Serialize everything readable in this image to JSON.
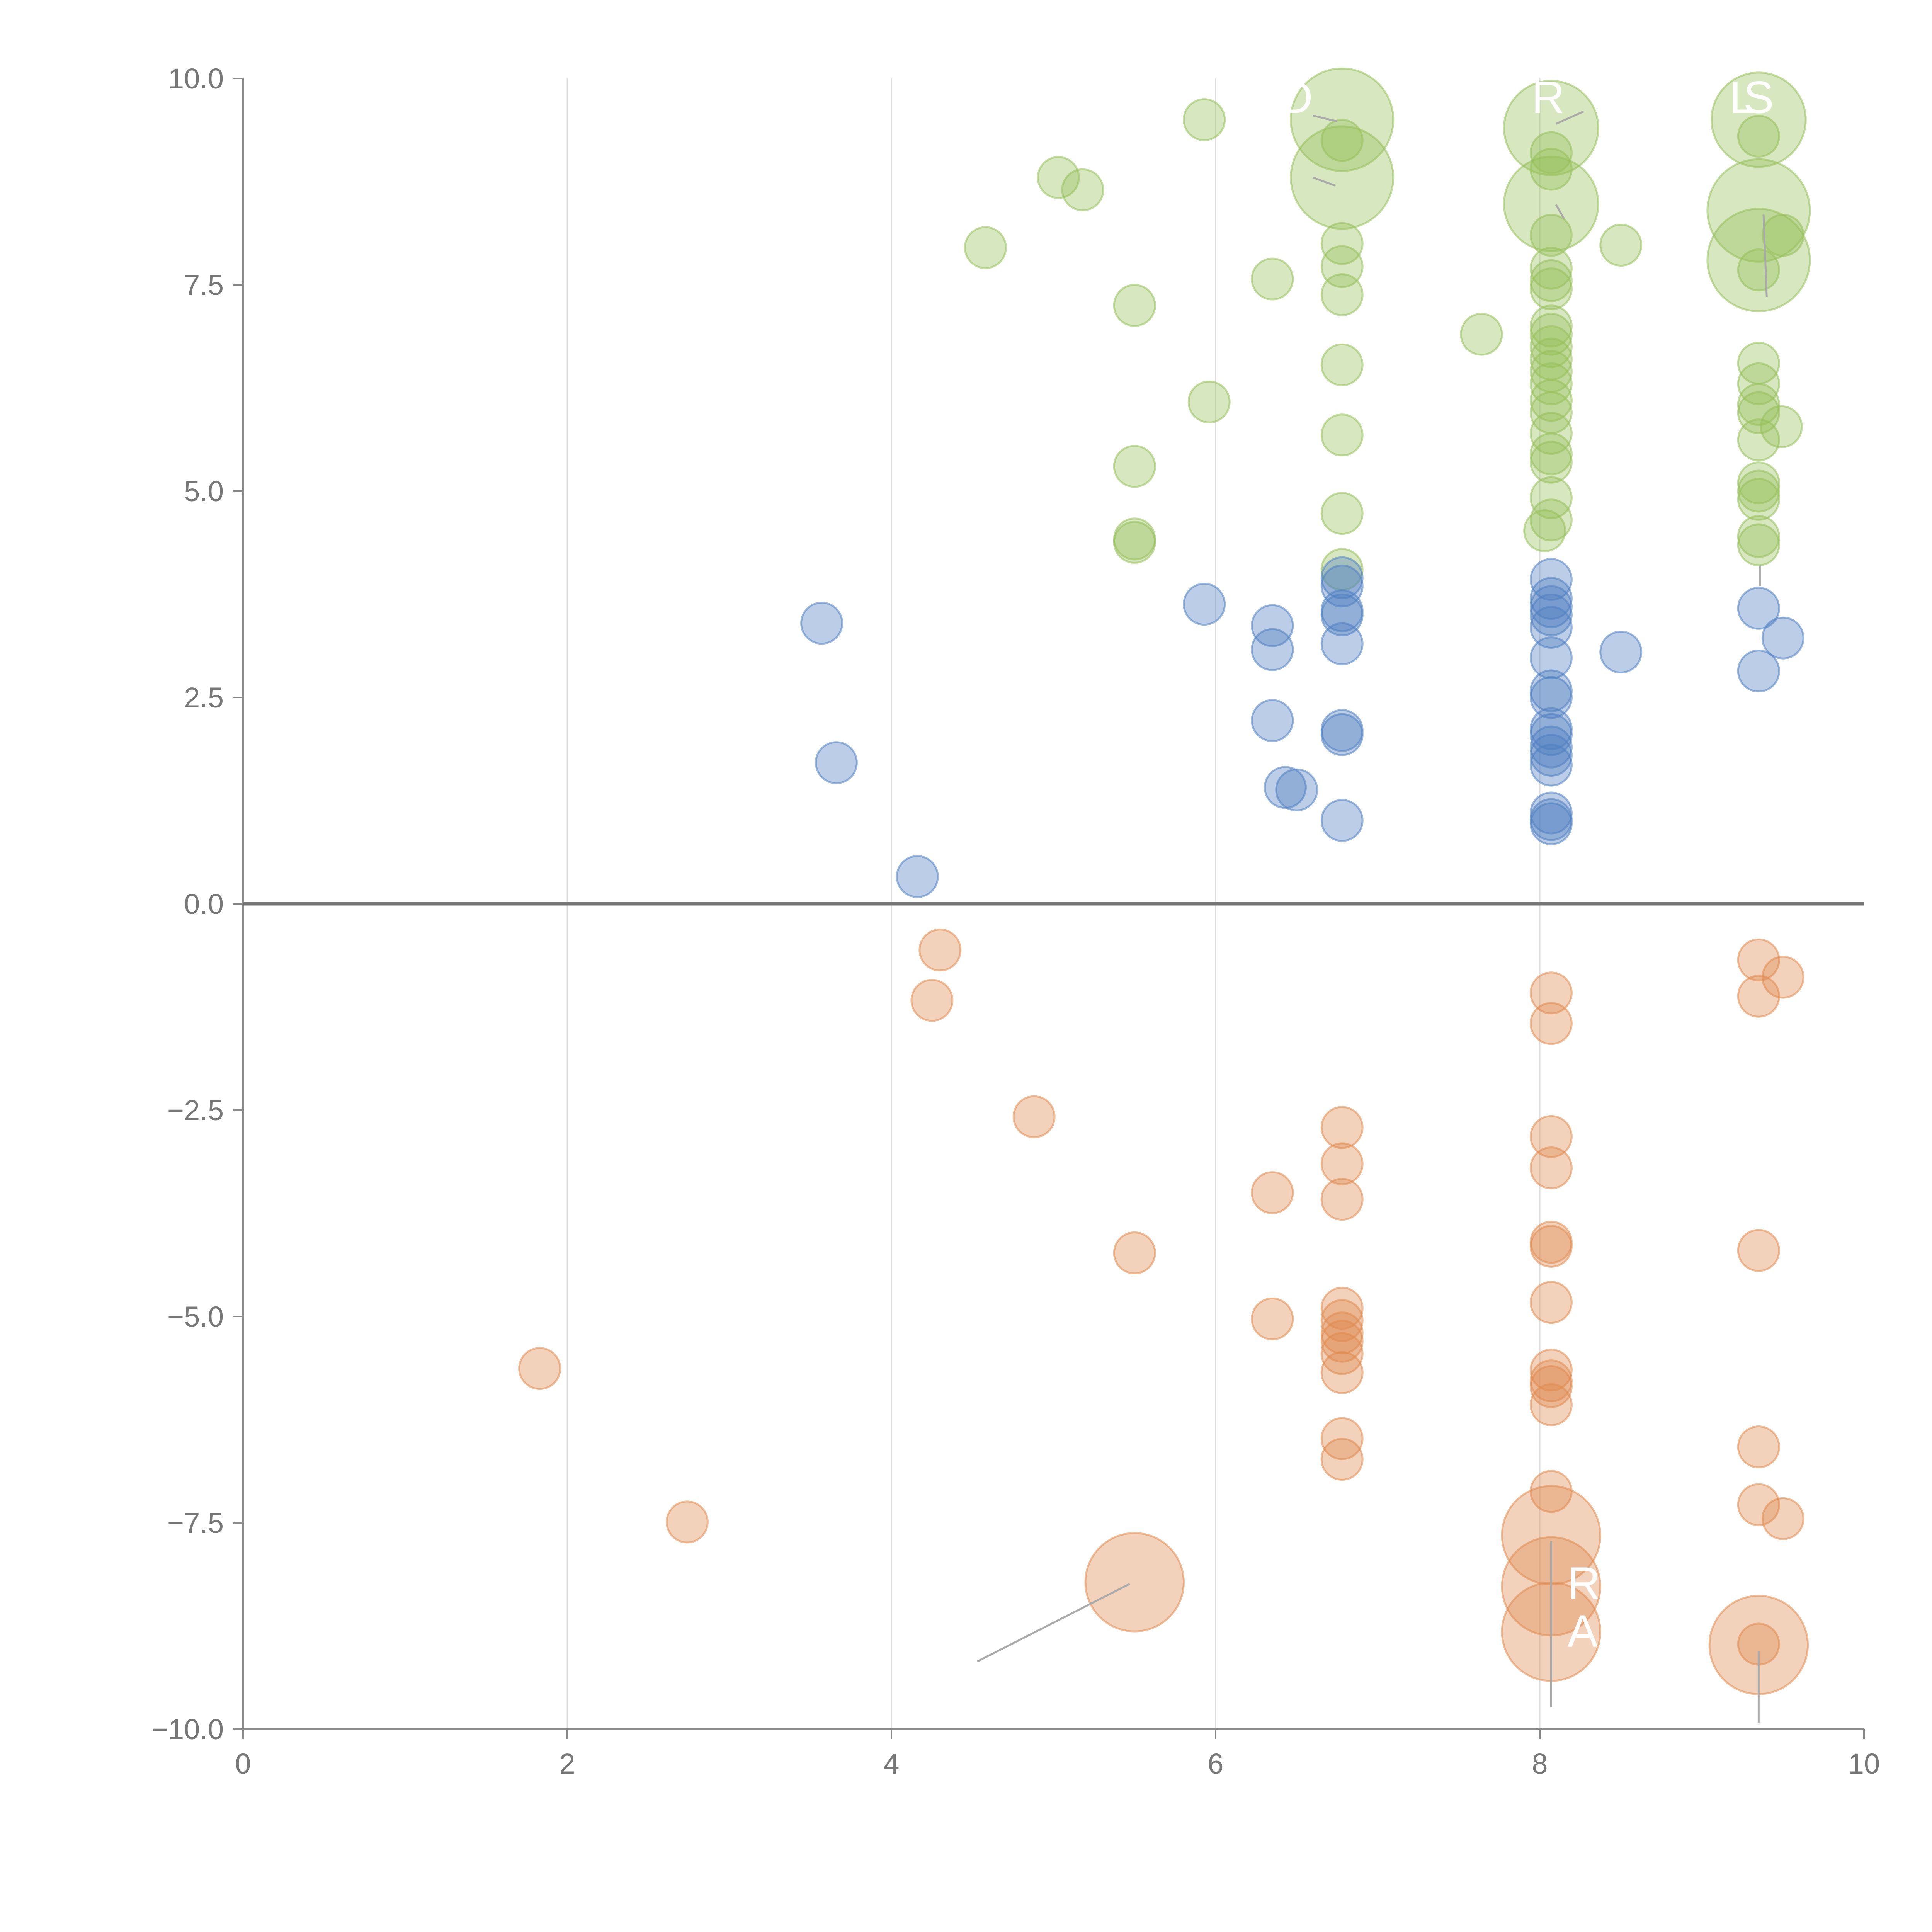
{
  "colors": {
    "blue": "#4e7fc1",
    "orange": "#e08a4e",
    "green": "#96bf5a",
    "zero_line": "#777777",
    "axis": "#888888",
    "grid": "#dddddd",
    "leader": "#aaaaaa"
  },
  "chart_data": {
    "type": "scatter",
    "title": "",
    "xlabel": "",
    "ylabel": "",
    "xlim": [
      0,
      10
    ],
    "ylim": [
      -10,
      10
    ],
    "x_ticks": [
      "0",
      "2",
      "4",
      "6",
      "8",
      "10"
    ],
    "y_ticks": [
      "10.0",
      "7.5",
      "5.0",
      "2.5",
      "0.0",
      "−2.5",
      "−5.0",
      "−7.5",
      "−10.0"
    ],
    "grid": "vertical",
    "series": [
      {
        "color_key": "green",
        "points": [
          [
            4.58,
            7.95,
            1
          ],
          [
            5.03,
            8.8,
            1
          ],
          [
            5.18,
            8.65,
            1
          ],
          [
            5.5,
            7.25,
            1
          ],
          [
            5.5,
            5.3,
            1
          ],
          [
            5.5,
            4.42,
            1
          ],
          [
            5.5,
            4.38,
            1
          ],
          [
            5.93,
            9.5,
            1
          ],
          [
            5.96,
            6.08,
            1
          ],
          [
            6.35,
            7.57,
            1
          ],
          [
            6.78,
            9.5,
            2.5
          ],
          [
            6.78,
            8.8,
            2.5
          ],
          [
            6.78,
            9.25,
            1
          ],
          [
            6.78,
            8.0,
            1
          ],
          [
            6.78,
            7.72,
            1
          ],
          [
            6.78,
            7.38,
            1
          ],
          [
            6.78,
            6.53,
            1
          ],
          [
            6.78,
            5.68,
            1
          ],
          [
            6.78,
            4.73,
            1
          ],
          [
            6.78,
            4.05,
            1
          ],
          [
            7.64,
            6.9,
            1
          ],
          [
            8.07,
            9.4,
            2.3
          ],
          [
            8.07,
            8.48,
            2.3
          ],
          [
            8.07,
            9.1,
            1
          ],
          [
            8.07,
            8.9,
            1
          ],
          [
            8.07,
            8.1,
            1
          ],
          [
            8.07,
            7.7,
            1
          ],
          [
            8.07,
            7.55,
            1
          ],
          [
            8.07,
            7.45,
            1
          ],
          [
            8.07,
            7.0,
            1
          ],
          [
            8.07,
            6.9,
            1
          ],
          [
            8.07,
            6.75,
            1
          ],
          [
            8.07,
            6.6,
            1
          ],
          [
            8.07,
            6.45,
            1
          ],
          [
            8.07,
            6.3,
            1
          ],
          [
            8.07,
            6.1,
            1
          ],
          [
            8.07,
            5.95,
            1
          ],
          [
            8.07,
            5.7,
            1
          ],
          [
            8.07,
            5.45,
            1
          ],
          [
            8.07,
            5.35,
            1
          ],
          [
            8.07,
            4.92,
            1
          ],
          [
            8.07,
            4.65,
            1
          ],
          [
            8.03,
            4.52,
            1
          ],
          [
            8.5,
            7.98,
            1
          ],
          [
            9.35,
            9.5,
            2.3
          ],
          [
            9.35,
            8.4,
            2.5
          ],
          [
            9.35,
            7.8,
            2.5
          ],
          [
            9.35,
            9.3,
            1
          ],
          [
            9.35,
            7.68,
            1
          ],
          [
            9.5,
            8.1,
            1
          ],
          [
            9.35,
            6.55,
            1
          ],
          [
            9.35,
            6.3,
            1
          ],
          [
            9.35,
            6.05,
            1
          ],
          [
            9.35,
            5.95,
            1
          ],
          [
            9.35,
            5.62,
            1
          ],
          [
            9.49,
            5.78,
            1
          ],
          [
            9.35,
            5.1,
            1
          ],
          [
            9.35,
            5.0,
            1
          ],
          [
            9.35,
            4.9,
            1
          ],
          [
            9.35,
            4.45,
            1
          ],
          [
            9.35,
            4.35,
            1
          ]
        ]
      },
      {
        "color_key": "blue",
        "points": [
          [
            3.57,
            3.4,
            1
          ],
          [
            3.66,
            1.71,
            1
          ],
          [
            4.16,
            0.33,
            1
          ],
          [
            5.93,
            3.63,
            1
          ],
          [
            6.35,
            3.37,
            1
          ],
          [
            6.35,
            3.08,
            1
          ],
          [
            6.35,
            2.22,
            1
          ],
          [
            6.43,
            1.41,
            1
          ],
          [
            6.5,
            1.38,
            1
          ],
          [
            6.78,
            3.95,
            1
          ],
          [
            6.78,
            3.85,
            1
          ],
          [
            6.78,
            3.55,
            1
          ],
          [
            6.78,
            3.5,
            1
          ],
          [
            6.78,
            3.15,
            1
          ],
          [
            6.78,
            2.1,
            1
          ],
          [
            6.78,
            2.05,
            1
          ],
          [
            6.78,
            1.01,
            1
          ],
          [
            8.07,
            3.93,
            1
          ],
          [
            8.07,
            3.7,
            1
          ],
          [
            8.07,
            3.6,
            1
          ],
          [
            8.07,
            3.5,
            1
          ],
          [
            8.07,
            3.35,
            1
          ],
          [
            8.07,
            2.98,
            1
          ],
          [
            8.07,
            2.58,
            1
          ],
          [
            8.07,
            2.5,
            1
          ],
          [
            8.07,
            2.12,
            1
          ],
          [
            8.07,
            2.05,
            1
          ],
          [
            8.07,
            1.9,
            1
          ],
          [
            8.07,
            1.8,
            1
          ],
          [
            8.07,
            1.68,
            1
          ],
          [
            8.07,
            1.1,
            1
          ],
          [
            8.07,
            1.02,
            1
          ],
          [
            8.07,
            0.97,
            1
          ],
          [
            8.5,
            3.05,
            1
          ],
          [
            9.35,
            3.58,
            1
          ],
          [
            9.5,
            3.22,
            1
          ],
          [
            9.35,
            2.82,
            1
          ]
        ]
      },
      {
        "color_key": "orange",
        "points": [
          [
            1.83,
            -5.63,
            1
          ],
          [
            2.74,
            -7.49,
            1
          ],
          [
            4.25,
            -1.17,
            1
          ],
          [
            4.3,
            -0.56,
            1
          ],
          [
            4.88,
            -2.58,
            1
          ],
          [
            5.5,
            -4.23,
            1
          ],
          [
            5.5,
            -8.22,
            2.4
          ],
          [
            6.35,
            -3.5,
            1
          ],
          [
            6.35,
            -5.03,
            1
          ],
          [
            6.78,
            -2.71,
            1
          ],
          [
            6.78,
            -3.15,
            1
          ],
          [
            6.78,
            -3.58,
            1
          ],
          [
            6.78,
            -4.9,
            1
          ],
          [
            6.78,
            -5.05,
            1
          ],
          [
            6.78,
            -5.2,
            1
          ],
          [
            6.78,
            -5.3,
            1
          ],
          [
            6.78,
            -5.45,
            1
          ],
          [
            6.78,
            -5.68,
            1
          ],
          [
            6.78,
            -6.48,
            1
          ],
          [
            6.78,
            -6.73,
            1
          ],
          [
            8.07,
            -1.08,
            1
          ],
          [
            8.07,
            -1.45,
            1
          ],
          [
            8.07,
            -2.82,
            1
          ],
          [
            8.07,
            -3.2,
            1
          ],
          [
            8.07,
            -4.1,
            1
          ],
          [
            8.07,
            -4.15,
            1
          ],
          [
            8.07,
            -4.83,
            1
          ],
          [
            8.07,
            -5.65,
            1
          ],
          [
            8.07,
            -5.78,
            1
          ],
          [
            8.07,
            -5.85,
            1
          ],
          [
            8.07,
            -6.07,
            1
          ],
          [
            8.07,
            -7.12,
            1
          ],
          [
            8.07,
            -7.65,
            2.4
          ],
          [
            8.07,
            -8.27,
            2.4
          ],
          [
            8.07,
            -8.82,
            2.4
          ],
          [
            9.35,
            -0.68,
            1
          ],
          [
            9.5,
            -0.89,
            1
          ],
          [
            9.35,
            -1.12,
            1
          ],
          [
            9.35,
            -4.2,
            1
          ],
          [
            9.35,
            -6.58,
            1
          ],
          [
            9.35,
            -7.28,
            1
          ],
          [
            9.5,
            -7.45,
            1
          ],
          [
            9.35,
            -8.98,
            2.4
          ],
          [
            9.35,
            -8.97,
            1
          ]
        ]
      }
    ],
    "annotations": [
      {
        "text": "D",
        "x": 6.6,
        "y": 9.58,
        "anchor": "end"
      },
      {
        "text": "R",
        "x": 7.95,
        "y": 9.58,
        "anchor": "start"
      },
      {
        "text": "L",
        "x": 9.17,
        "y": 9.58,
        "anchor": "start"
      },
      {
        "text": "S",
        "x": 9.35,
        "y": 9.58,
        "anchor": "middle"
      },
      {
        "text": "R",
        "x": 8.17,
        "y": -8.42,
        "anchor": "start"
      },
      {
        "text": "A",
        "x": 8.17,
        "y": -9.0,
        "anchor": "start"
      }
    ],
    "leaders": [
      [
        [
          5.47,
          -8.24
        ],
        [
          4.53,
          -9.18
        ]
      ],
      [
        [
          8.07,
          -7.72
        ],
        [
          8.07,
          -9.73
        ]
      ],
      [
        [
          9.35,
          -9.05
        ],
        [
          9.35,
          -9.92
        ]
      ],
      [
        [
          6.6,
          9.55
        ],
        [
          6.75,
          9.48
        ]
      ],
      [
        [
          6.6,
          8.8
        ],
        [
          6.74,
          8.7
        ]
      ],
      [
        [
          8.1,
          9.45
        ],
        [
          8.27,
          9.6
        ]
      ],
      [
        [
          8.1,
          8.47
        ],
        [
          8.15,
          8.3
        ]
      ],
      [
        [
          9.38,
          8.35
        ],
        [
          9.4,
          7.35
        ]
      ],
      [
        [
          9.36,
          4.1
        ],
        [
          9.36,
          3.85
        ]
      ]
    ]
  }
}
